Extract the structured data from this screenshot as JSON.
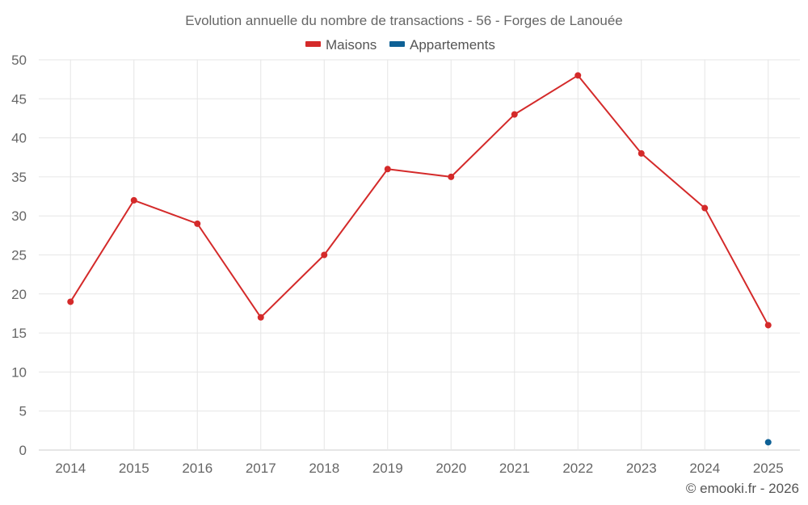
{
  "chart_data": {
    "type": "line",
    "title": "Evolution annuelle du nombre de transactions - 56 - Forges de Lanouée",
    "categories": [
      "2014",
      "2015",
      "2016",
      "2017",
      "2018",
      "2019",
      "2020",
      "2021",
      "2022",
      "2023",
      "2024",
      "2025"
    ],
    "series": [
      {
        "name": "Maisons",
        "color": "#d42a2a",
        "values": [
          19,
          32,
          29,
          17,
          25,
          36,
          35,
          43,
          48,
          38,
          31,
          16
        ]
      },
      {
        "name": "Appartements",
        "color": "#0e6196",
        "values": [
          null,
          null,
          null,
          null,
          null,
          null,
          null,
          null,
          null,
          null,
          null,
          1
        ]
      }
    ],
    "yticks": [
      "0",
      "5",
      "10",
      "15",
      "20",
      "25",
      "30",
      "35",
      "40",
      "45",
      "50"
    ],
    "ylim": [
      0,
      50
    ],
    "xlabel": "",
    "ylabel": "",
    "legend_position": "top-center",
    "grid": true
  },
  "credit": "© emooki.fr - 2026"
}
